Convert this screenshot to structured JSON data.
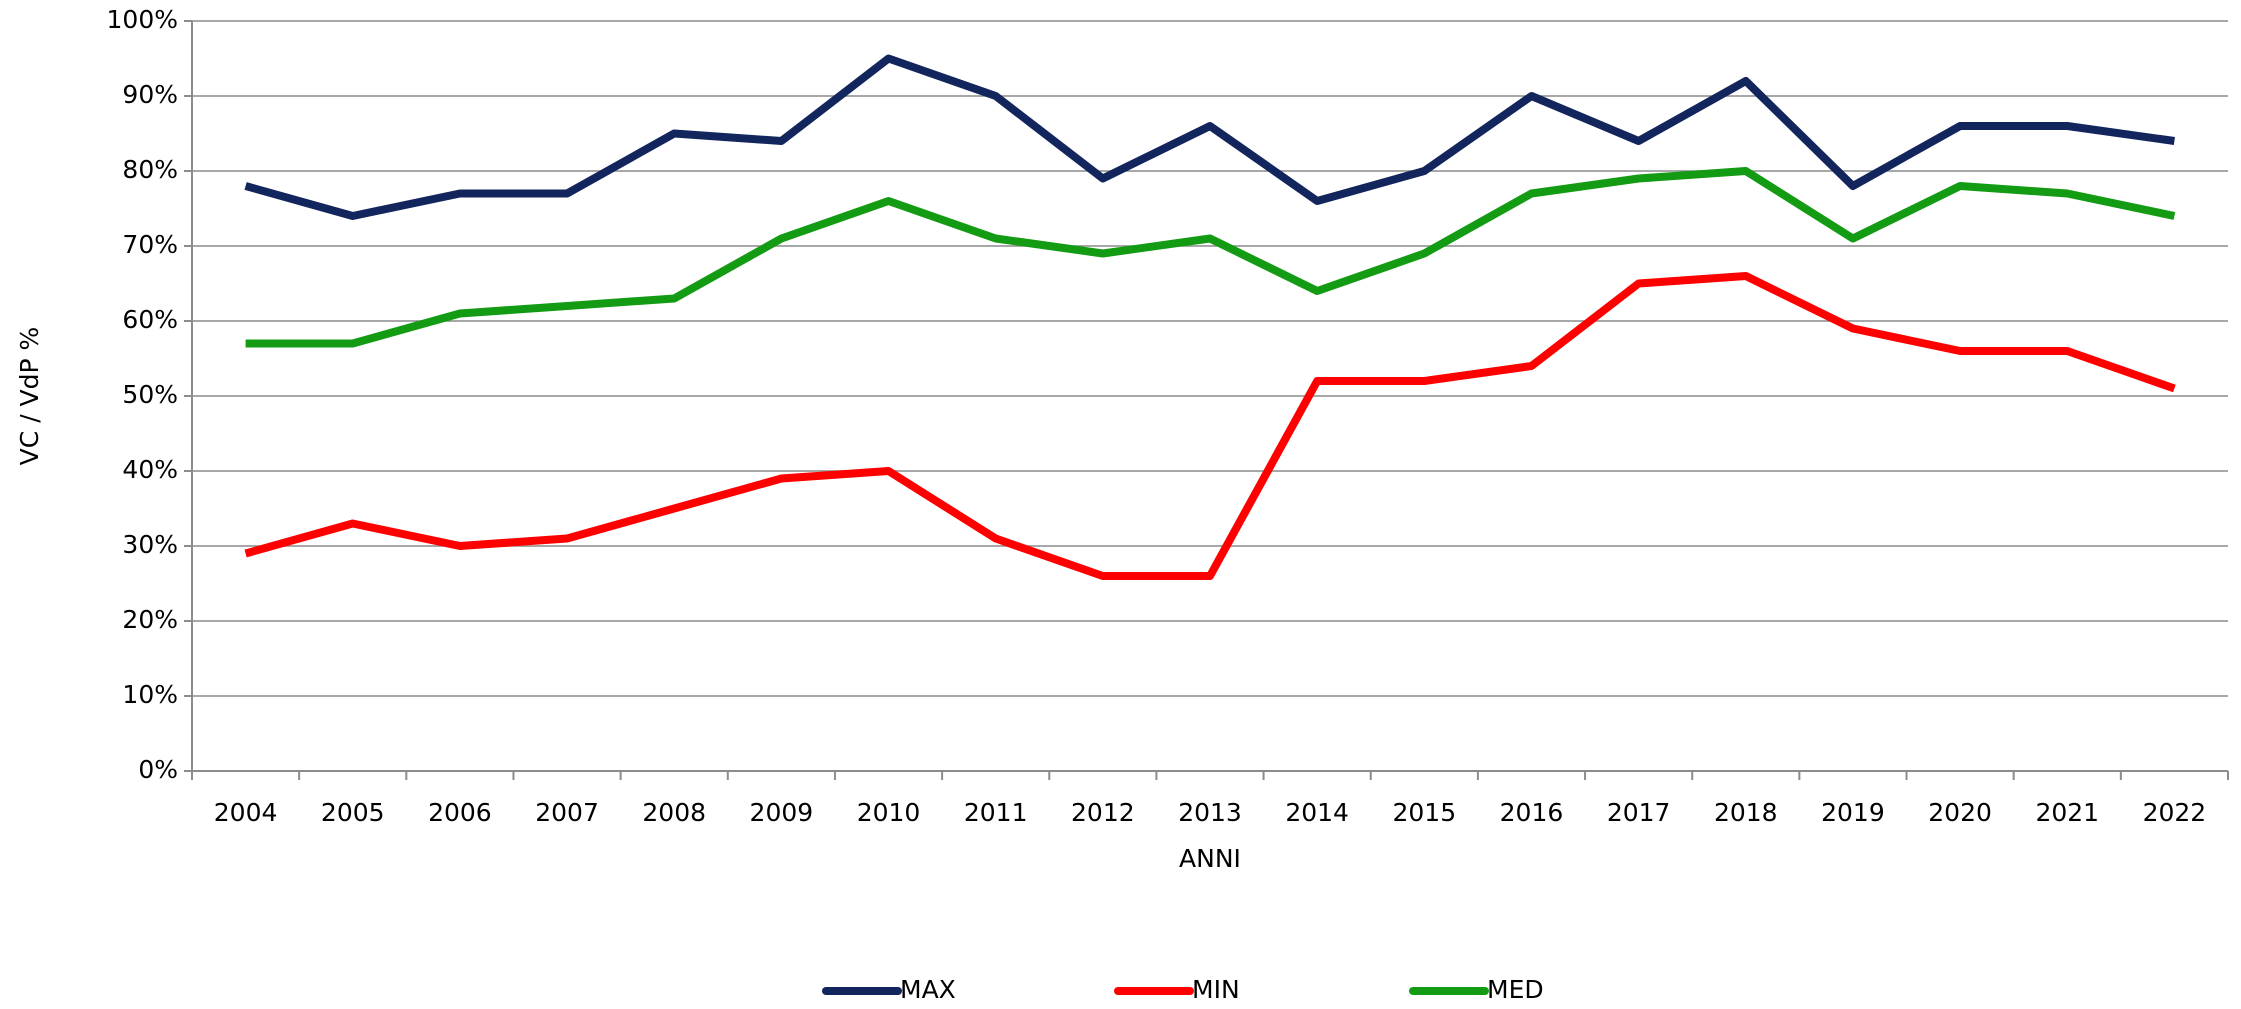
{
  "chart_data": {
    "type": "line",
    "x_label": "ANNI",
    "y_label": "VC / VdP %",
    "categories": [
      "2004",
      "2005",
      "2006",
      "2007",
      "2008",
      "2009",
      "2010",
      "2011",
      "2012",
      "2013",
      "2014",
      "2015",
      "2016",
      "2017",
      "2018",
      "2019",
      "2020",
      "2021",
      "2022"
    ],
    "series": [
      {
        "name": "MAX",
        "color": "#12255c",
        "values": [
          78,
          74,
          77,
          77,
          85,
          84,
          95,
          90,
          79,
          86,
          76,
          80,
          90,
          84,
          92,
          78,
          86,
          86,
          84
        ]
      },
      {
        "name": "MIN",
        "color": "#ff0000",
        "values": [
          29,
          33,
          30,
          31,
          35,
          39,
          40,
          31,
          26,
          26,
          52,
          52,
          54,
          65,
          66,
          59,
          56,
          56,
          51
        ]
      },
      {
        "name": "MED",
        "color": "#139c13",
        "values": [
          57,
          57,
          61,
          62,
          63,
          71,
          76,
          71,
          69,
          71,
          64,
          69,
          77,
          79,
          80,
          71,
          78,
          77,
          74
        ]
      }
    ],
    "ylim": [
      0,
      100
    ],
    "yticks": [
      {
        "value": 0,
        "label": "0%"
      },
      {
        "value": 10,
        "label": "10%"
      },
      {
        "value": 20,
        "label": "20%"
      },
      {
        "value": 30,
        "label": "30%"
      },
      {
        "value": 40,
        "label": "40%"
      },
      {
        "value": 50,
        "label": "50%"
      },
      {
        "value": 60,
        "label": "60%"
      },
      {
        "value": 70,
        "label": "70%"
      },
      {
        "value": 80,
        "label": "80%"
      },
      {
        "value": 90,
        "label": "90%"
      },
      {
        "value": 100,
        "label": "100%"
      }
    ],
    "grid": true,
    "legend": "bottom"
  }
}
